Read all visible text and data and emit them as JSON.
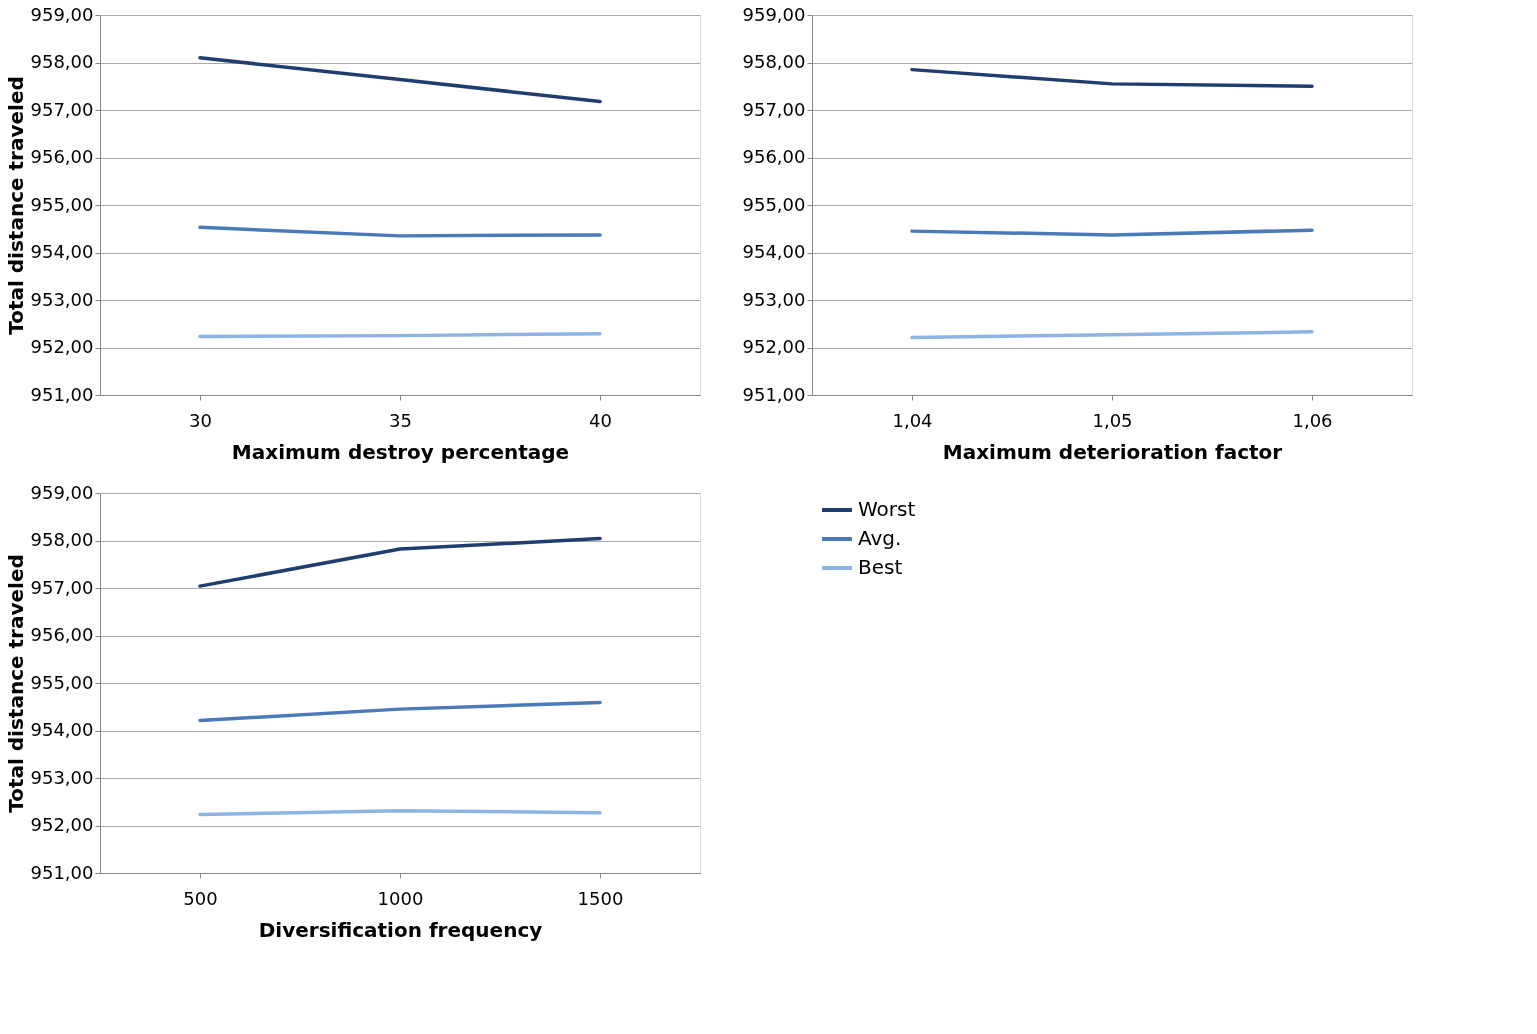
{
  "chart_data": [
    {
      "type": "line",
      "xlabel": "Maximum destroy percentage",
      "ylabel": "Total distance traveled",
      "categories": [
        "30",
        "35",
        "40"
      ],
      "ylim": [
        951,
        959
      ],
      "yticks": [
        {
          "value": 951,
          "label": "951,00"
        },
        {
          "value": 952,
          "label": "952,00"
        },
        {
          "value": 953,
          "label": "953,00"
        },
        {
          "value": 954,
          "label": "954,00"
        },
        {
          "value": 955,
          "label": "955,00"
        },
        {
          "value": 956,
          "label": "956,00"
        },
        {
          "value": 957,
          "label": "957,00"
        },
        {
          "value": 958,
          "label": "958,00"
        },
        {
          "value": 959,
          "label": "959,00"
        }
      ],
      "grid": "y",
      "legend": false,
      "series": [
        {
          "color": "#1f3d6e",
          "values": [
            958.1,
            957.64,
            957.18
          ]
        },
        {
          "color": "#4a7ab8",
          "values": [
            954.53,
            954.35,
            954.37
          ]
        },
        {
          "color": "#8db4e2",
          "values": [
            952.23,
            952.25,
            952.29
          ]
        }
      ]
    },
    {
      "type": "line",
      "xlabel": "Maximum deterioration factor",
      "categories": [
        "1,04",
        "1,05",
        "1,06"
      ],
      "ylim": [
        951,
        959
      ],
      "yticks": [
        {
          "value": 951,
          "label": "951,00"
        },
        {
          "value": 952,
          "label": "952,00"
        },
        {
          "value": 953,
          "label": "953,00"
        },
        {
          "value": 954,
          "label": "954,00"
        },
        {
          "value": 955,
          "label": "955,00"
        },
        {
          "value": 956,
          "label": "956,00"
        },
        {
          "value": 957,
          "label": "957,00"
        },
        {
          "value": 958,
          "label": "958,00"
        },
        {
          "value": 959,
          "label": "959,00"
        }
      ],
      "grid": "y",
      "legend": false,
      "series": [
        {
          "color": "#1f3d6e",
          "values": [
            957.85,
            957.55,
            957.5
          ]
        },
        {
          "color": "#4a7ab8",
          "values": [
            954.45,
            954.37,
            954.47
          ]
        },
        {
          "color": "#8db4e2",
          "values": [
            952.21,
            952.27,
            952.33
          ]
        }
      ]
    },
    {
      "type": "line",
      "xlabel": "Diversification frequency",
      "ylabel": "Total distance traveled",
      "categories": [
        "500",
        "1000",
        "1500"
      ],
      "ylim": [
        951,
        959
      ],
      "yticks": [
        {
          "value": 951,
          "label": "951,00"
        },
        {
          "value": 952,
          "label": "952,00"
        },
        {
          "value": 953,
          "label": "953,00"
        },
        {
          "value": 954,
          "label": "954,00"
        },
        {
          "value": 955,
          "label": "955,00"
        },
        {
          "value": 956,
          "label": "956,00"
        },
        {
          "value": 957,
          "label": "957,00"
        },
        {
          "value": 958,
          "label": "958,00"
        },
        {
          "value": 959,
          "label": "959,00"
        }
      ],
      "grid": "y",
      "legend": "right",
      "series": [
        {
          "name": "Worst",
          "color": "#1f3d6e",
          "values": [
            957.04,
            957.82,
            958.04
          ]
        },
        {
          "name": "Avg.",
          "color": "#4a7ab8",
          "values": [
            954.21,
            954.45,
            954.59
          ]
        },
        {
          "name": "Best",
          "color": "#8db4e2",
          "values": [
            952.23,
            952.31,
            952.27
          ]
        }
      ]
    }
  ]
}
